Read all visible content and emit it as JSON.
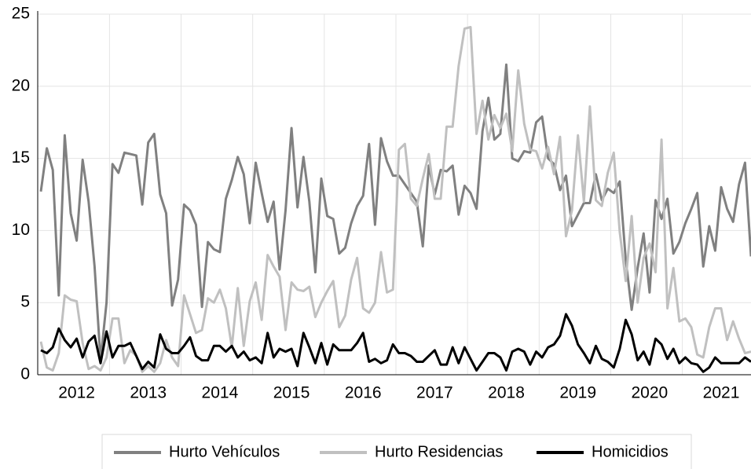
{
  "chart_data": {
    "type": "line",
    "categories": [
      null,
      null,
      null,
      null,
      null,
      null,
      "2012",
      null,
      null,
      null,
      null,
      null,
      null,
      null,
      null,
      null,
      null,
      null,
      "2013",
      null,
      null,
      null,
      null,
      null,
      null,
      null,
      null,
      null,
      null,
      null,
      "2014",
      null,
      null,
      null,
      null,
      null,
      null,
      null,
      null,
      null,
      null,
      null,
      "2015",
      null,
      null,
      null,
      null,
      null,
      null,
      null,
      null,
      null,
      null,
      null,
      "2016",
      null,
      null,
      null,
      null,
      null,
      null,
      null,
      null,
      null,
      null,
      null,
      "2017",
      null,
      null,
      null,
      null,
      null,
      null,
      null,
      null,
      null,
      null,
      null,
      "2018",
      null,
      null,
      null,
      null,
      null,
      null,
      null,
      null,
      null,
      null,
      null,
      "2019",
      null,
      null,
      null,
      null,
      null,
      null,
      null,
      null,
      null,
      null,
      null,
      "2020",
      null,
      null,
      null,
      null,
      null,
      null,
      null,
      null,
      null,
      null,
      null,
      "2021",
      null,
      null,
      null,
      null,
      null
    ],
    "series": [
      {
        "name": "Hurto Vehículos",
        "color": "#808080",
        "values": [
          12.7,
          15.7,
          14.2,
          5.5,
          16.6,
          11.2,
          9.3,
          14.9,
          12.0,
          7.5,
          1.0,
          5.0,
          14.6,
          14.0,
          15.4,
          15.3,
          15.2,
          11.8,
          16.1,
          16.7,
          12.5,
          11.2,
          4.8,
          6.6,
          11.8,
          11.4,
          10.4,
          4.7,
          9.2,
          8.7,
          8.5,
          12.2,
          13.5,
          15.1,
          13.9,
          10.5,
          14.7,
          12.6,
          10.6,
          12.0,
          7.3,
          11.4,
          17.1,
          11.6,
          15.1,
          12.0,
          7.1,
          13.6,
          11.0,
          10.8,
          8.4,
          8.8,
          10.5,
          11.7,
          12.4,
          16.0,
          10.4,
          16.4,
          14.8,
          13.8,
          13.8,
          13.2,
          12.6,
          12.0,
          8.9,
          14.5,
          12.5,
          14.2,
          14.1,
          14.5,
          11.1,
          13.1,
          12.6,
          11.5,
          16.9,
          19.2,
          16.3,
          16.7,
          21.5,
          15.0,
          14.8,
          15.5,
          15.4,
          17.5,
          17.9,
          15.0,
          14.6,
          12.8,
          13.8,
          10.3,
          11.1,
          11.9,
          11.9,
          13.9,
          12.1,
          12.9,
          12.6,
          13.4,
          8.0,
          4.5,
          7.4,
          9.8,
          5.7,
          12.1,
          10.8,
          12.2,
          8.4,
          9.2,
          10.5,
          11.5,
          12.6,
          7.5,
          10.3,
          8.6,
          13.0,
          11.5,
          10.6,
          13.2,
          14.7,
          8.2
        ]
      },
      {
        "name": "Hurto Residencias",
        "color": "#c0c0c0",
        "values": [
          2.3,
          0.5,
          0.3,
          1.5,
          5.5,
          5.2,
          5.1,
          2.2,
          0.4,
          0.6,
          0.3,
          1.2,
          3.9,
          3.9,
          0.8,
          1.7,
          1.3,
          0.2,
          0.6,
          0.2,
          0.8,
          2.4,
          1.2,
          0.6,
          5.5,
          4.2,
          2.9,
          3.1,
          5.3,
          5.0,
          5.9,
          4.6,
          1.9,
          6.0,
          2.0,
          5.1,
          6.4,
          3.8,
          8.3,
          7.5,
          6.8,
          3.1,
          6.4,
          5.9,
          5.8,
          6.1,
          4.0,
          5.0,
          5.8,
          6.5,
          3.3,
          4.1,
          6.6,
          8.1,
          4.6,
          4.3,
          5.0,
          8.5,
          5.7,
          5.9,
          15.6,
          16.0,
          12.2,
          11.7,
          13.6,
          15.3,
          12.2,
          12.2,
          17.2,
          17.2,
          21.4,
          24.0,
          24.1,
          16.7,
          19.0,
          16.3,
          18.0,
          17.1,
          18.1,
          15.5,
          21.1,
          17.4,
          15.6,
          15.5,
          14.3,
          15.8,
          13.9,
          16.5,
          9.6,
          11.4,
          16.6,
          12.0,
          18.6,
          12.1,
          11.7,
          14.0,
          15.4,
          9.9,
          6.5,
          11.0,
          5.0,
          8.1,
          9.1,
          7.1,
          16.3,
          4.6,
          7.4,
          3.7,
          3.9,
          3.3,
          1.4,
          1.2,
          3.3,
          4.6,
          4.6,
          2.4,
          3.7,
          2.5,
          1.5,
          1.6
        ]
      },
      {
        "name": "Homicidios",
        "color": "#000000",
        "values": [
          1.7,
          1.5,
          1.9,
          3.2,
          2.4,
          1.9,
          2.5,
          1.2,
          2.3,
          2.7,
          0.8,
          3.0,
          1.2,
          2.0,
          2.0,
          2.2,
          1.3,
          0.4,
          0.9,
          0.5,
          2.8,
          1.8,
          1.5,
          1.5,
          2.0,
          2.6,
          1.3,
          1.0,
          1.0,
          2.0,
          2.0,
          1.6,
          2.0,
          1.2,
          1.6,
          1.0,
          1.2,
          0.8,
          2.9,
          1.2,
          1.8,
          1.6,
          1.8,
          0.6,
          2.9,
          1.9,
          0.8,
          2.2,
          0.7,
          2.1,
          1.7,
          1.7,
          1.7,
          2.2,
          2.9,
          0.9,
          1.1,
          0.8,
          1.0,
          2.1,
          1.5,
          1.5,
          1.3,
          0.9,
          0.9,
          1.3,
          1.7,
          0.7,
          0.7,
          1.9,
          0.8,
          1.9,
          1.1,
          0.3,
          0.9,
          1.5,
          1.5,
          1.2,
          0.3,
          1.6,
          1.8,
          1.6,
          0.7,
          1.6,
          1.2,
          1.9,
          2.1,
          2.7,
          4.2,
          3.4,
          2.1,
          1.5,
          0.8,
          2.0,
          1.1,
          0.9,
          0.5,
          1.8,
          3.8,
          2.8,
          1.0,
          1.6,
          0.7,
          2.5,
          2.1,
          1.1,
          1.8,
          0.8,
          1.2,
          0.8,
          0.7,
          0.2,
          0.5,
          1.2,
          0.8,
          0.8,
          0.8,
          0.8,
          1.2,
          0.9
        ]
      }
    ],
    "ylim": [
      0,
      25
    ],
    "yticks": [
      0,
      5,
      10,
      15,
      20,
      25
    ],
    "grid": true
  }
}
